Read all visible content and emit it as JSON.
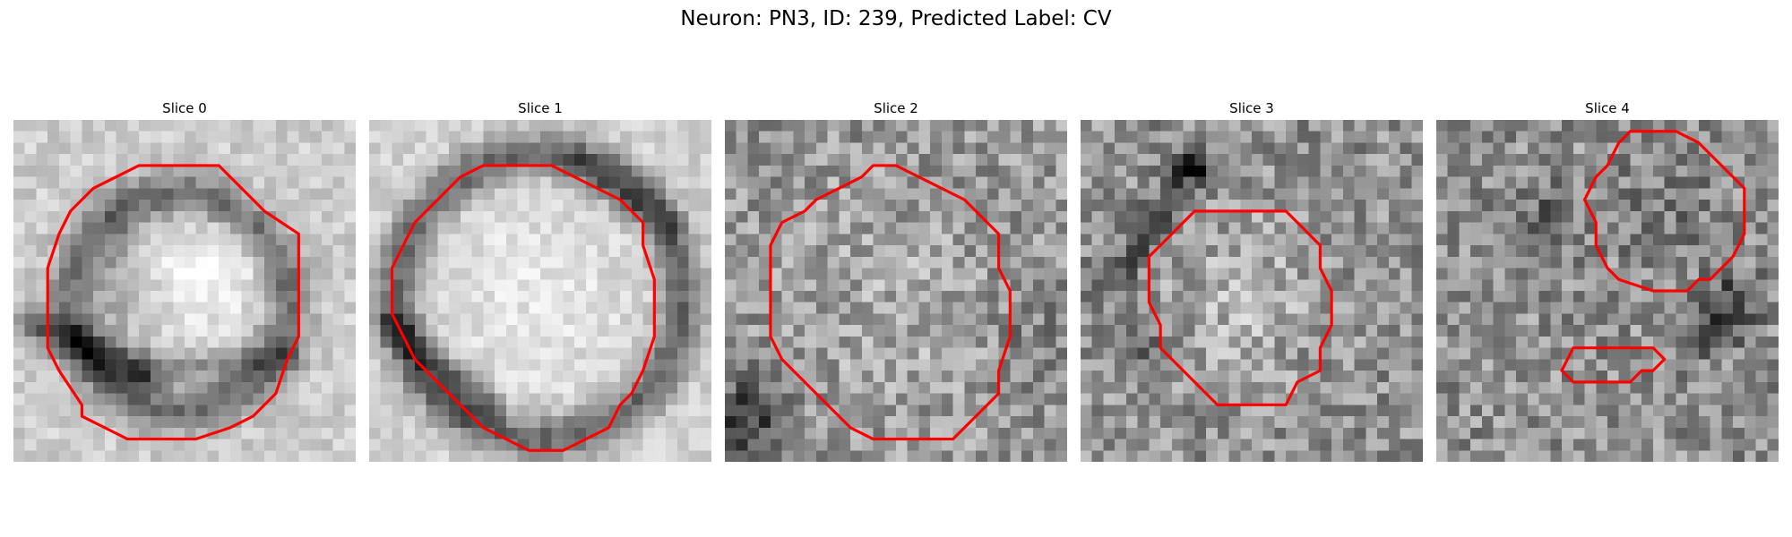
{
  "figure": {
    "title": "Neuron: PN3, ID: 239, Predicted Label: CV",
    "contour_color": "#ff0000",
    "colormap": "gray",
    "grid_size": 30
  },
  "slices": [
    {
      "title": "Slice 0",
      "contours": [
        [
          [
            11,
            4
          ],
          [
            18,
            4
          ],
          [
            20,
            6
          ],
          [
            22,
            8
          ],
          [
            25,
            10
          ],
          [
            25,
            19
          ],
          [
            24,
            21
          ],
          [
            23,
            24
          ],
          [
            21,
            26
          ],
          [
            19,
            27
          ],
          [
            16,
            28
          ],
          [
            10,
            28
          ],
          [
            8,
            27
          ],
          [
            6,
            26
          ],
          [
            6,
            25
          ],
          [
            4,
            22
          ],
          [
            3,
            20
          ],
          [
            3,
            13
          ],
          [
            4,
            10
          ],
          [
            5,
            8
          ],
          [
            7,
            6
          ],
          [
            9,
            5
          ]
        ]
      ]
    },
    {
      "title": "Slice 1",
      "contours": [
        [
          [
            10,
            4
          ],
          [
            16,
            4
          ],
          [
            18,
            5
          ],
          [
            20,
            6
          ],
          [
            22,
            7
          ],
          [
            24,
            9
          ],
          [
            24,
            11
          ],
          [
            25,
            14
          ],
          [
            25,
            19
          ],
          [
            24,
            22
          ],
          [
            23,
            24
          ],
          [
            22,
            25
          ],
          [
            21,
            27
          ],
          [
            19,
            28
          ],
          [
            17,
            29
          ],
          [
            14,
            29
          ],
          [
            12,
            28
          ],
          [
            10,
            27
          ],
          [
            8,
            25
          ],
          [
            6,
            23
          ],
          [
            4,
            21
          ],
          [
            3,
            19
          ],
          [
            2,
            17
          ],
          [
            2,
            13
          ],
          [
            3,
            11
          ],
          [
            4,
            9
          ],
          [
            5,
            8
          ],
          [
            6,
            7
          ],
          [
            8,
            5
          ]
        ]
      ]
    },
    {
      "title": "Slice 2",
      "contours": [
        [
          [
            13,
            4
          ],
          [
            15,
            4
          ],
          [
            17,
            5
          ],
          [
            19,
            6
          ],
          [
            21,
            7
          ],
          [
            23,
            9
          ],
          [
            24,
            10
          ],
          [
            24,
            13
          ],
          [
            25,
            15
          ],
          [
            25,
            19
          ],
          [
            24,
            22
          ],
          [
            24,
            24
          ],
          [
            23,
            25
          ],
          [
            22,
            26
          ],
          [
            20,
            28
          ],
          [
            19,
            28
          ],
          [
            13,
            28
          ],
          [
            11,
            27
          ],
          [
            9,
            25
          ],
          [
            7,
            23
          ],
          [
            5,
            21
          ],
          [
            4,
            19
          ],
          [
            4,
            13
          ],
          [
            4,
            11
          ],
          [
            5,
            9
          ],
          [
            7,
            8
          ],
          [
            8,
            7
          ],
          [
            10,
            6
          ],
          [
            12,
            5
          ]
        ]
      ]
    },
    {
      "title": "Slice 3",
      "contours": [
        [
          [
            10,
            8
          ],
          [
            18,
            8
          ],
          [
            20,
            10
          ],
          [
            21,
            11
          ],
          [
            21,
            13
          ],
          [
            22,
            15
          ],
          [
            22,
            18
          ],
          [
            21,
            20
          ],
          [
            21,
            22
          ],
          [
            19,
            23
          ],
          [
            18,
            25
          ],
          [
            12,
            25
          ],
          [
            10,
            23
          ],
          [
            9,
            22
          ],
          [
            7,
            20
          ],
          [
            7,
            18
          ],
          [
            6,
            16
          ],
          [
            6,
            12
          ],
          [
            7,
            11
          ],
          [
            8,
            10
          ]
        ]
      ]
    },
    {
      "title": "Slice 4",
      "contours": [
        [
          [
            17,
            1
          ],
          [
            21,
            1
          ],
          [
            23,
            2
          ],
          [
            24,
            3
          ],
          [
            26,
            5
          ],
          [
            27,
            6
          ],
          [
            27,
            10
          ],
          [
            26,
            12
          ],
          [
            25,
            13
          ],
          [
            24,
            14
          ],
          [
            23,
            14
          ],
          [
            22,
            15
          ],
          [
            20,
            15
          ],
          [
            19,
            15
          ],
          [
            16,
            14
          ],
          [
            15,
            13
          ],
          [
            14,
            11
          ],
          [
            14,
            9
          ],
          [
            13,
            7
          ],
          [
            14,
            5
          ],
          [
            15,
            4
          ],
          [
            16,
            2
          ]
        ],
        [
          [
            12,
            20
          ],
          [
            19,
            20
          ],
          [
            20,
            21
          ],
          [
            19,
            22
          ],
          [
            18,
            22
          ],
          [
            17,
            23
          ],
          [
            15,
            23
          ],
          [
            12,
            23
          ],
          [
            11,
            22
          ]
        ]
      ]
    }
  ]
}
